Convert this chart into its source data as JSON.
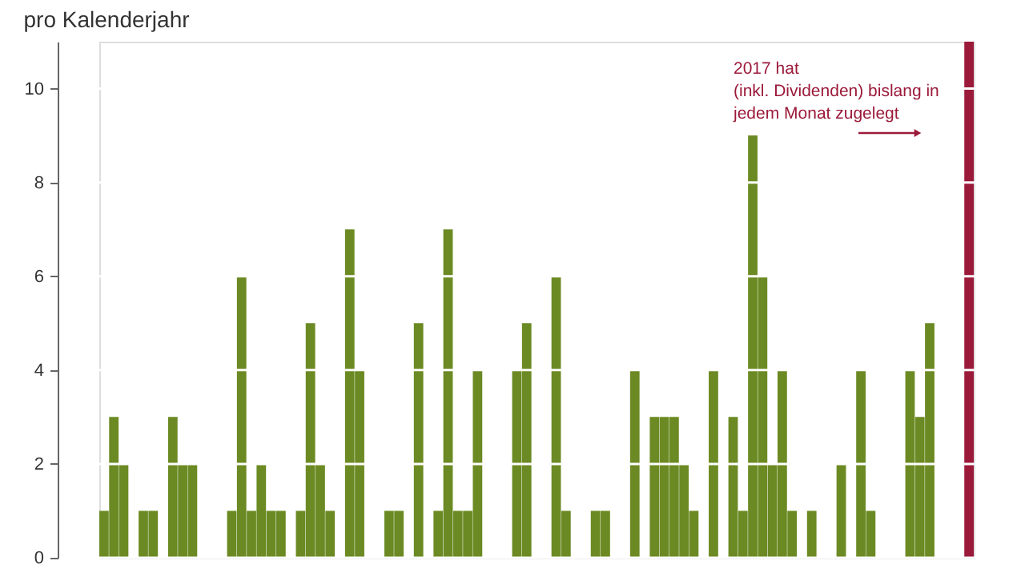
{
  "chart_data": {
    "type": "bar",
    "title": "pro Kalenderjahr",
    "categories": [
      null,
      null,
      null,
      null,
      null,
      null,
      null,
      null,
      null,
      null,
      null,
      null,
      null,
      null,
      null,
      null,
      null,
      null,
      null,
      null,
      null,
      null,
      null,
      null,
      null,
      null,
      null,
      null,
      null,
      null,
      null,
      null,
      null,
      null,
      null,
      null,
      null,
      null,
      null,
      null,
      null,
      null,
      null,
      null,
      null,
      null,
      null,
      null,
      null,
      null,
      null,
      null,
      null,
      null,
      null,
      null,
      null,
      null,
      null,
      null,
      null,
      null,
      null,
      null,
      null,
      null,
      null,
      null,
      null,
      null,
      null,
      null,
      null,
      null,
      null,
      null,
      null,
      null,
      null,
      null,
      null,
      null,
      null,
      null,
      null,
      null,
      null,
      null,
      null
    ],
    "series": [
      {
        "color": "#6b8a23",
        "values": [
          1,
          3,
          2,
          0,
          1,
          1,
          0,
          3,
          2,
          2,
          0,
          0,
          0,
          1,
          6,
          1,
          2,
          1,
          1,
          0,
          1,
          5,
          2,
          1,
          0,
          7,
          4,
          0,
          0,
          1,
          1,
          0,
          5,
          0,
          1,
          7,
          1,
          1,
          4,
          0,
          0,
          0,
          4,
          5,
          0,
          0,
          6,
          1,
          0,
          0,
          1,
          1,
          0,
          0,
          4,
          0,
          3,
          3,
          3,
          2,
          1,
          0,
          4,
          0,
          3,
          1,
          9,
          6,
          2,
          4,
          1,
          0,
          1,
          0,
          0,
          2,
          0,
          4,
          1,
          0,
          0,
          0,
          4,
          3,
          5,
          0,
          0,
          0,
          null
        ]
      },
      {
        "color": "#9b1a3a",
        "values": [
          null,
          null,
          null,
          null,
          null,
          null,
          null,
          null,
          null,
          null,
          null,
          null,
          null,
          null,
          null,
          null,
          null,
          null,
          null,
          null,
          null,
          null,
          null,
          null,
          null,
          null,
          null,
          null,
          null,
          null,
          null,
          null,
          null,
          null,
          null,
          null,
          null,
          null,
          null,
          null,
          null,
          null,
          null,
          null,
          null,
          null,
          null,
          null,
          null,
          null,
          null,
          null,
          null,
          null,
          null,
          null,
          null,
          null,
          null,
          null,
          null,
          null,
          null,
          null,
          null,
          null,
          null,
          null,
          null,
          null,
          null,
          null,
          null,
          null,
          null,
          null,
          null,
          null,
          null,
          null,
          null,
          null,
          null,
          null,
          null,
          null,
          null,
          null,
          11
        ]
      }
    ],
    "ylim": [
      0,
      11
    ],
    "yticks": [
      0,
      2,
      4,
      6,
      8,
      10
    ],
    "grid": "y",
    "tick_labels": "y",
    "annotations": [
      "2017 hat\n(inkl. Dividenden) bislang in\njedem Monat zugelegt"
    ]
  }
}
